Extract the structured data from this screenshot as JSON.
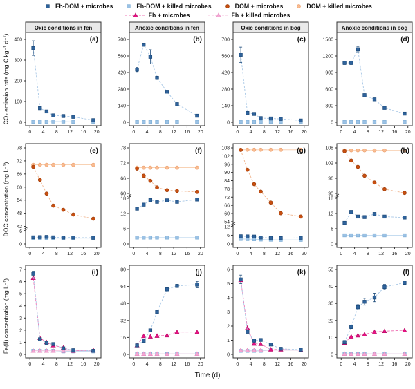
{
  "legend": {
    "rows": [
      [
        {
          "key": "fhdom_microbes",
          "label": "Fh-DOM + microbes"
        },
        {
          "key": "fhdom_killed",
          "label": "Fh-DOM + killed microbes"
        },
        {
          "key": "dom_microbes",
          "label": "DOM + microbes"
        },
        {
          "key": "dom_killed",
          "label": "DOM + killed microbes"
        }
      ],
      [
        {
          "key": "fh_microbes",
          "label": "Fh + microbes"
        },
        {
          "key": "fh_killed",
          "label": "Fh + killed microbes"
        }
      ]
    ]
  },
  "axis_titles": {
    "row1": "CO₂ emission rate (mg C kg⁻¹ d⁻¹)",
    "row2": "DOC concentration (mg L⁻¹)",
    "row3": "Fe(II) concentration (mg L⁻¹)"
  },
  "xlabel": "Time (d)",
  "colors": {
    "fhdom_microbes": {
      "fill": "#2f639c",
      "stroke": "#1b4979",
      "line": "#a9c8e6",
      "dash": "3,2",
      "marker": "square"
    },
    "fhdom_killed": {
      "fill": "#9cc2e5",
      "stroke": "#7fafd6",
      "line": "#bdd7ee",
      "dash": "",
      "marker": "square"
    },
    "dom_microbes": {
      "fill": "#c94f10",
      "stroke": "#9c3c09",
      "line": "#f0b690",
      "dash": "3,2",
      "marker": "circle"
    },
    "dom_killed": {
      "fill": "#f9bc92",
      "stroke": "#eda270",
      "line": "#f7cbaa",
      "dash": "",
      "marker": "circle"
    },
    "fh_microbes": {
      "fill": "#e91184",
      "stroke": "#b80d67",
      "line": "#ef75b6",
      "dash": "4,2",
      "marker": "triangle"
    },
    "fh_killed": {
      "fill": "#f4a9d5",
      "stroke": "#e78ec2",
      "line": "#f5c3de",
      "dash": "",
      "marker": "triangle"
    }
  },
  "chart_data": {
    "type": "line",
    "x_days": [
      1,
      3,
      5,
      7,
      10,
      13,
      19
    ],
    "xticks": [
      0,
      4,
      8,
      12,
      16,
      20
    ],
    "xlim": [
      0,
      20
    ],
    "panels": [
      {
        "id": "a",
        "row": 0,
        "title": "Oxic conditions in fen",
        "label": "(a)",
        "ylim": [
          0,
          400
        ],
        "yticks": [
          0,
          100,
          200,
          300,
          400
        ],
        "series": {
          "fhdom_killed": {
            "y": [
              2,
              2,
              2,
              3,
              3,
              2,
              2
            ]
          },
          "fhdom_microbes": {
            "y": [
              358,
              68,
              52,
              33,
              30,
              26,
              10
            ],
            "err": [
              35,
              6,
              5,
              4,
              4,
              4,
              6
            ]
          }
        }
      },
      {
        "id": "b",
        "row": 0,
        "title": "Anoxic conditions in fen",
        "label": "(b)",
        "ylim": [
          0,
          700
        ],
        "yticks": [
          0,
          140,
          280,
          420,
          560,
          700
        ],
        "series": {
          "fhdom_killed": {
            "y": [
              3,
              3,
              3,
              3,
              3,
              3,
              3
            ]
          },
          "fhdom_microbes": {
            "y": [
              445,
              655,
              553,
              375,
              258,
              153,
              55
            ],
            "err": [
              18,
              12,
              60,
              14,
              10,
              8,
              6
            ]
          }
        }
      },
      {
        "id": "c",
        "row": 0,
        "title": "Oxic conditions in bog",
        "label": "(c)",
        "ylim": [
          0,
          700
        ],
        "yticks": [
          0,
          140,
          280,
          420,
          560,
          700
        ],
        "series": {
          "fhdom_killed": {
            "y": [
              3,
              3,
              3,
              3,
              3,
              3,
              3
            ]
          },
          "fhdom_microbes": {
            "y": [
              570,
              78,
              70,
              35,
              32,
              28,
              15
            ],
            "err": [
              65,
              8,
              6,
              5,
              5,
              4,
              4
            ]
          }
        }
      },
      {
        "id": "d",
        "row": 0,
        "title": "Anoxic conditions in bog",
        "label": "(d)",
        "ylim": [
          0,
          1500
        ],
        "yticks": [
          0,
          300,
          600,
          900,
          1200,
          1500
        ],
        "series": {
          "fhdom_killed": {
            "y": [
              5,
              5,
              5,
              5,
              5,
              5,
              5
            ]
          },
          "fhdom_microbes": {
            "y": [
              1075,
              1075,
              1320,
              490,
              415,
              260,
              155
            ],
            "err": [
              30,
              30,
              45,
              20,
              15,
              14,
              12
            ]
          }
        }
      },
      {
        "id": "e",
        "row": 1,
        "label": "(e)",
        "segments": [
          {
            "range": [
              0,
              6
            ],
            "frac": 0.14,
            "ticks": [
              0,
              6
            ]
          },
          {
            "range": [
              42,
              78
            ],
            "frac": 0.86,
            "ticks": [
              42,
              48,
              54,
              60,
              66,
              72,
              78
            ]
          }
        ],
        "series": {
          "dom_killed": {
            "y": [
              70.2,
              70.2,
              70.2,
              70.2,
              70.2,
              70.2,
              70.2
            ]
          },
          "fhdom_killed": {
            "y": [
              2.8,
              2.8,
              2.8,
              2.7,
              2.7,
              2.7,
              2.7
            ]
          },
          "dom_microbes": {
            "y": [
              69.3,
              63.3,
              57.0,
              51.5,
              49.6,
              47.4,
              45.5
            ]
          },
          "fhdom_microbes": {
            "y": [
              3.1,
              3.2,
              3.3,
              3.1,
              3.0,
              3.0,
              2.9
            ]
          }
        }
      },
      {
        "id": "f",
        "row": 1,
        "label": "(f)",
        "segments": [
          {
            "range": [
              0,
              18
            ],
            "frac": 0.5,
            "ticks": [
              0,
              6,
              12,
              18
            ]
          },
          {
            "range": [
              60,
              78
            ],
            "frac": 0.5,
            "ticks": [
              60,
              66,
              72,
              78
            ]
          }
        ],
        "series": {
          "dom_killed": {
            "y": [
              70.2,
              70.2,
              70.2,
              70.2,
              70.2,
              70.2,
              70.2
            ]
          },
          "fhdom_killed": {
            "y": [
              2.5,
              2.5,
              2.5,
              2.5,
              2.5,
              2.5,
              2.5
            ]
          },
          "dom_microbes": {
            "y": [
              69.8,
              67.0,
              65.0,
              62.4,
              61.3,
              61.0,
              60.6
            ]
          },
          "fhdom_microbes": {
            "y": [
              13.9,
              15.5,
              17.3,
              16.6,
              17.2,
              16.6,
              17.5
            ]
          }
        }
      },
      {
        "id": "g",
        "row": 1,
        "label": "(g)",
        "segments": [
          {
            "range": [
              0,
              12
            ],
            "frac": 0.19,
            "ticks": [
              0,
              6,
              12
            ]
          },
          {
            "range": [
              54,
              108
            ],
            "frac": 0.81,
            "ticks": [
              54,
              60,
              66,
              72,
              78,
              84,
              90,
              96,
              102,
              108
            ]
          }
        ],
        "series": {
          "dom_killed": {
            "y": [
              106.6,
              106.6,
              106.6,
              106.6,
              106.6,
              106.6,
              106.6
            ]
          },
          "fhdom_killed": {
            "y": [
              3.4,
              3.3,
              3.2,
              3.0,
              2.9,
              2.8,
              2.8
            ]
          },
          "dom_microbes": {
            "y": [
              106.5,
              92.0,
              81.5,
              76.0,
              68.0,
              60.2,
              57.8
            ]
          },
          "fhdom_microbes": {
            "y": [
              5.3,
              5.2,
              5.1,
              4.4,
              4.2,
              4.0,
              4.2
            ]
          }
        }
      },
      {
        "id": "h",
        "row": 1,
        "label": "(h)",
        "segments": [
          {
            "range": [
              0,
              18
            ],
            "frac": 0.5,
            "ticks": [
              0,
              6,
              12,
              18
            ]
          },
          {
            "range": [
              90,
              108
            ],
            "frac": 0.5,
            "ticks": [
              90,
              96,
              102,
              108
            ]
          }
        ],
        "series": {
          "dom_killed": {
            "y": [
              107.0,
              107.0,
              107.0,
              107.0,
              107.0,
              107.0,
              107.0
            ]
          },
          "fhdom_killed": {
            "y": [
              3.4,
              3.4,
              3.4,
              3.4,
              3.4,
              3.4,
              3.4
            ]
          },
          "dom_microbes": {
            "y": [
              106.7,
              103.0,
              100.5,
              97.0,
              94.3,
              91.7,
              90.2
            ]
          },
          "fhdom_microbes": {
            "y": [
              8.3,
              12.6,
              10.8,
              10.6,
              11.8,
              10.8,
              10.4
            ]
          }
        }
      },
      {
        "id": "i",
        "row": 2,
        "label": "(i)",
        "ylim": [
          0,
          7
        ],
        "yticks": [
          0,
          1,
          2,
          3,
          4,
          5,
          6,
          7
        ],
        "series": {
          "fh_killed": {
            "y": [
              0.3,
              0.3,
              0.3,
              0.3,
              0.3,
              0.3,
              0.3
            ]
          },
          "fhdom_killed": {
            "y": [
              0.3,
              0.3,
              0.3,
              0.3,
              0.25,
              0.25,
              0.25
            ]
          },
          "fh_microbes": {
            "y": [
              6.3,
              1.35,
              1.0,
              0.75,
              0.55,
              0.3,
              0.35
            ]
          },
          "fhdom_microbes": {
            "y": [
              6.65,
              1.25,
              0.95,
              0.85,
              0.5,
              0.35,
              0.3
            ],
            "err": [
              0.2,
              0.1,
              0.1,
              0.1,
              0.05,
              0.05,
              0.05
            ]
          }
        }
      },
      {
        "id": "j",
        "row": 2,
        "label": "(j)",
        "ylim": [
          0,
          80
        ],
        "yticks": [
          0,
          16,
          32,
          48,
          64,
          80
        ],
        "series": {
          "fh_killed": {
            "y": [
              0.5,
              0.5,
              0.5,
              0.5,
              0.5,
              0.5,
              0.5
            ]
          },
          "fhdom_killed": {
            "y": [
              0.5,
              0.5,
              0.5,
              0.5,
              0.5,
              0.5,
              0.5
            ]
          },
          "fh_microbes": {
            "y": [
              8.5,
              17.3,
              16.8,
              17.5,
              18.0,
              21.0,
              21.0
            ]
          },
          "fhdom_microbes": {
            "y": [
              8.5,
              12.8,
              22.7,
              40.0,
              61.3,
              64.5,
              65.8
            ],
            "err": [
              1,
              1,
              1,
              1.5,
              1.5,
              1.5,
              3
            ]
          }
        }
      },
      {
        "id": "k",
        "row": 2,
        "label": "(k)",
        "ylim": [
          0,
          6
        ],
        "yticks": [
          0,
          1,
          2,
          3,
          4,
          5,
          6
        ],
        "series": {
          "fh_killed": {
            "y": [
              0.3,
              0.3,
              0.3,
              0.3,
              0.3,
              0.3,
              0.3
            ]
          },
          "fhdom_killed": {
            "y": [
              0.25,
              0.25,
              0.25,
              0.25,
              0.3,
              0.3,
              0.3
            ]
          },
          "fh_microbes": {
            "y": [
              5.25,
              1.87,
              0.75,
              0.73,
              0.35,
              0.35,
              0.3
            ]
          },
          "fhdom_microbes": {
            "y": [
              5.3,
              1.6,
              0.97,
              1.02,
              0.7,
              0.4,
              0.33
            ],
            "err": [
              0.3,
              0.1,
              0.08,
              0.08,
              0.05,
              0.05,
              0.05
            ]
          }
        }
      },
      {
        "id": "l",
        "row": 2,
        "label": "(l)",
        "ylim": [
          0,
          50
        ],
        "yticks": [
          0,
          10,
          20,
          30,
          40,
          50
        ],
        "series": {
          "fh_killed": {
            "y": [
              0.3,
              0.3,
              0.3,
              0.3,
              0.3,
              0.3,
              0.3
            ]
          },
          "fhdom_killed": {
            "y": [
              0.3,
              0.3,
              0.3,
              0.3,
              0.3,
              0.3,
              0.3
            ]
          },
          "fh_microbes": {
            "y": [
              6.8,
              10.5,
              11.2,
              11.8,
              13.2,
              13.7,
              14.2
            ]
          },
          "fhdom_microbes": {
            "y": [
              7.2,
              16.2,
              27.8,
              31.0,
              33.5,
              39.7,
              42.2
            ],
            "err": [
              1,
              1,
              1.5,
              2,
              2.5,
              1.5,
              1
            ]
          }
        }
      }
    ]
  }
}
